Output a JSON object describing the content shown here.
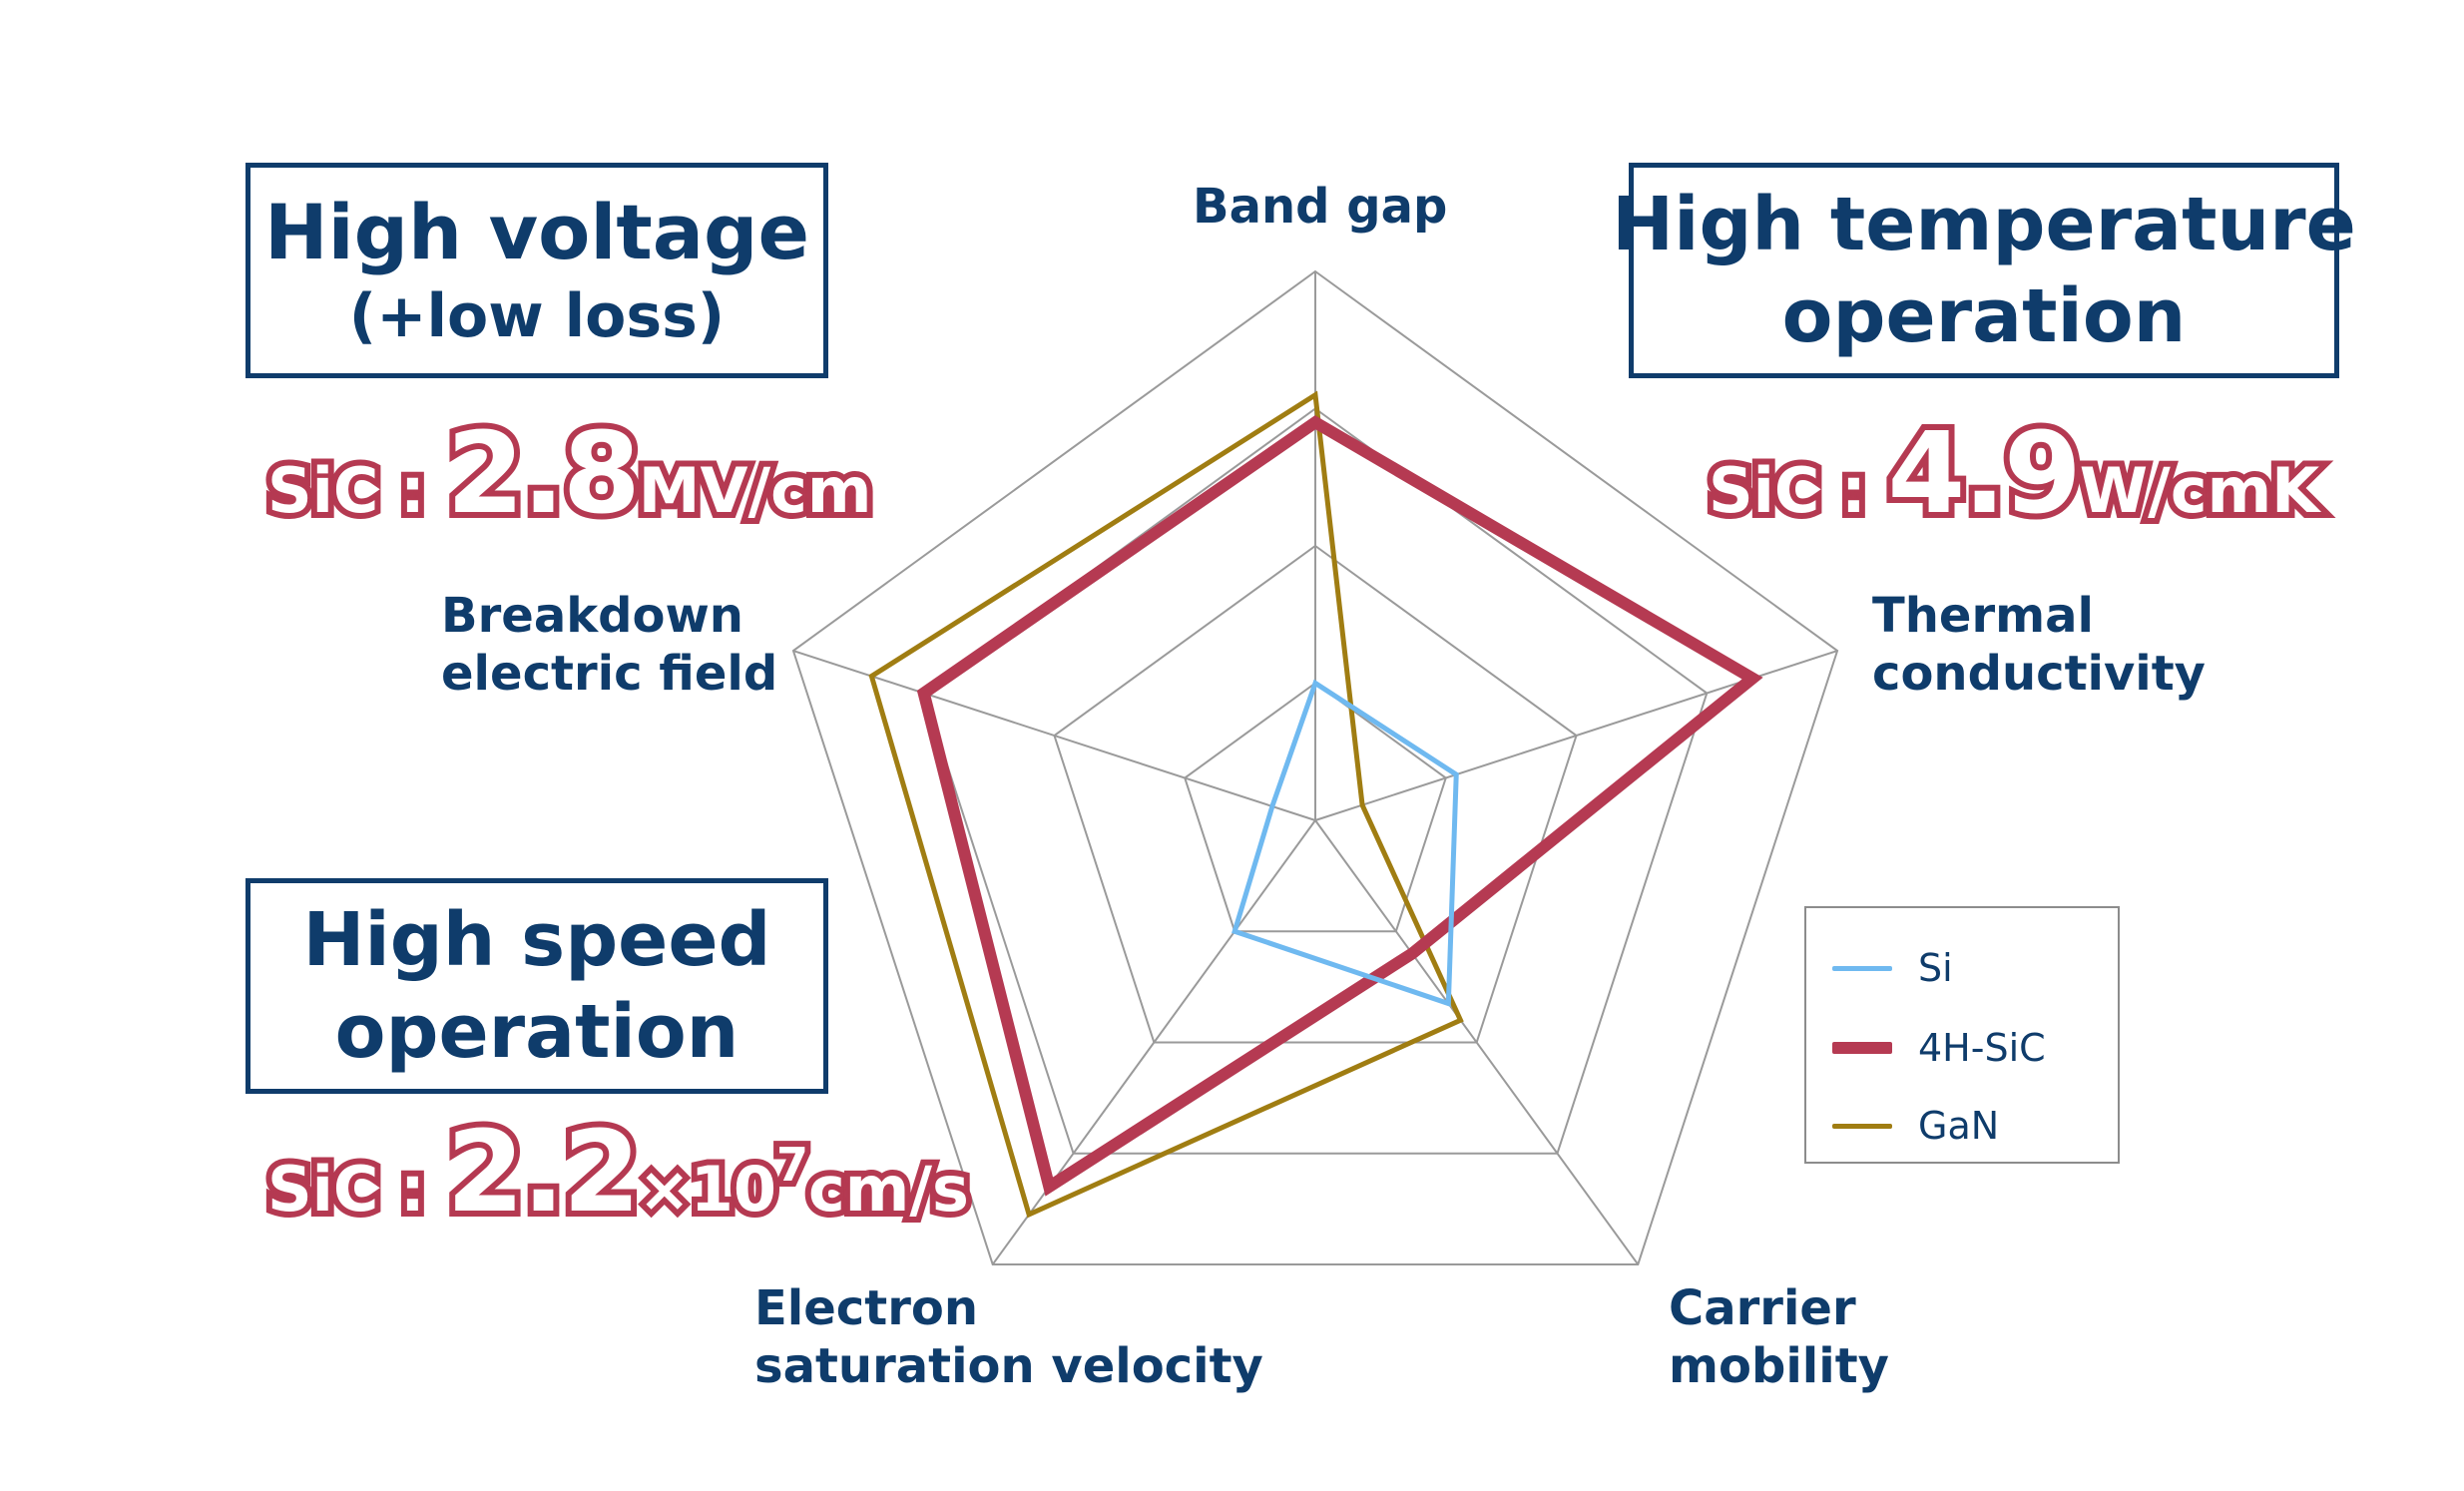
{
  "chart_data": {
    "type": "radar",
    "axes": [
      "Band gap",
      "Thermal conductivity",
      "Carrier mobility",
      "Electron saturation velocity",
      "Breakdown electric field"
    ],
    "rings": 4,
    "range": [
      0,
      4
    ],
    "series": [
      {
        "name": "Si",
        "color": "#6fb9f0",
        "values": [
          1.0,
          1.08,
          1.65,
          1.0,
          0.33
        ]
      },
      {
        "name": "4H-SiC",
        "color": "#b53a52",
        "values": [
          2.9,
          3.35,
          1.2,
          3.3,
          3.0
        ]
      },
      {
        "name": "GaN",
        "color": "#a07d12",
        "values": [
          3.1,
          0.36,
          1.8,
          3.55,
          3.4
        ]
      }
    ]
  },
  "axis_labels": {
    "band_gap": "Band gap",
    "thermal": "Thermal\nconductivity",
    "carrier": "Carrier\nmobility",
    "electron": "Electron\nsaturation velocity",
    "breakdown": "Breakdown\nelectric field"
  },
  "boxes": {
    "high_voltage": {
      "line1": "High voltage",
      "line2": "(+low loss)"
    },
    "high_temp": {
      "line1": "High temperature",
      "line2": "operation"
    },
    "high_speed": {
      "line1": "High speed",
      "line2": "operation"
    }
  },
  "callouts": {
    "voltage": {
      "prefix": "SiC : ",
      "value": "2.8",
      "unit": "MV/cm"
    },
    "temp": {
      "prefix": "SiC : ",
      "value": "4.9",
      "unit": "W/cmK"
    },
    "speed": {
      "prefix": "SiC : ",
      "value": "2.2",
      "times": "×10",
      "exp": "7",
      "unit": "cm/s"
    }
  },
  "legend": [
    {
      "label": "Si",
      "color": "#6fb9f0"
    },
    {
      "label": "4H-SiC",
      "color": "#b53a52"
    },
    {
      "label": "GaN",
      "color": "#a07d12"
    }
  ]
}
